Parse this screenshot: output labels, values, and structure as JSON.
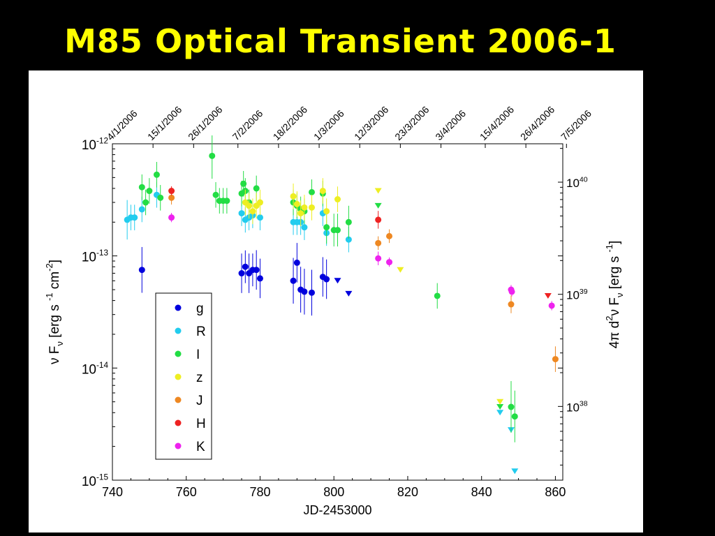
{
  "slide_title": "M85 Optical Transient 2006-1",
  "chart_data": {
    "type": "scatter",
    "xlabel": "JD-2453000",
    "ylabel_main": "ν F",
    "ylabel_sub": "ν",
    "ylabel_units": "[erg s",
    "ylabel_units_exp1": "-1",
    "ylabel_units_mid": "cm",
    "ylabel_units_exp2": "-2",
    "ylabel_units_end": "]",
    "y2label_pre": "4π d",
    "y2label_sq": "2",
    "y2label_mid": "ν F",
    "y2label_sub": "ν",
    "y2label_units": "[erg s",
    "y2label_units_exp": "-1",
    "y2label_units_end": "]",
    "xlim": [
      740,
      862
    ],
    "ylim": [
      1e-15,
      1e-12
    ],
    "yscale": "log",
    "y2scale": "log",
    "y2lim_approx": [
      2.2e+37,
      2.2e+40
    ],
    "x_ticks": [
      740,
      760,
      780,
      800,
      820,
      840,
      860
    ],
    "y_ticks": [
      {
        "base": "10",
        "exp": "-15",
        "value": 1e-15
      },
      {
        "base": "10",
        "exp": "-14",
        "value": 1e-14
      },
      {
        "base": "10",
        "exp": "-13",
        "value": 1e-13
      },
      {
        "base": "10",
        "exp": "-12",
        "value": 1e-12
      }
    ],
    "y2_ticks": [
      {
        "base": "10",
        "exp": "38",
        "value": 1e+38
      },
      {
        "base": "10",
        "exp": "39",
        "value": 1e+39
      },
      {
        "base": "10",
        "exp": "40",
        "value": 1e+40
      }
    ],
    "top_ticks": [
      {
        "jd": 740,
        "label": "4/1/2006"
      },
      {
        "jd": 751,
        "label": "15/1/2006"
      },
      {
        "jd": 762,
        "label": "26/1/2006"
      },
      {
        "jd": 774,
        "label": "7/2/2006"
      },
      {
        "jd": 785,
        "label": "18/2/2006"
      },
      {
        "jd": 796,
        "label": "1/3/2006"
      },
      {
        "jd": 807,
        "label": "12/3/2006"
      },
      {
        "jd": 818,
        "label": "23/3/2006"
      },
      {
        "jd": 829,
        "label": "3/4/2006"
      },
      {
        "jd": 841,
        "label": "15/4/2006"
      },
      {
        "jd": 852,
        "label": "26/4/2006"
      },
      {
        "jd": 863,
        "label": "7/5/2006"
      }
    ],
    "grid": false,
    "legend_position": "lower-left",
    "series": [
      {
        "name": "g",
        "color": "#0000dd",
        "points": [
          [
            748,
            7.5e-14,
            1.6
          ],
          [
            775,
            7e-14,
            1.5
          ],
          [
            776,
            8e-14,
            1.4
          ],
          [
            777,
            7e-14,
            1.5
          ],
          [
            778,
            7.5e-14,
            1.4
          ],
          [
            779,
            7.5e-14,
            1.5
          ],
          [
            780,
            6.3e-14,
            1.5
          ],
          [
            789,
            6e-14,
            1.6
          ],
          [
            790,
            8.7e-14,
            1.5
          ],
          [
            791,
            5e-14,
            1.6
          ],
          [
            792,
            4.8e-14,
            1.6
          ],
          [
            794,
            4.7e-14,
            1.6
          ],
          [
            797,
            6.5e-14,
            1.5
          ],
          [
            798,
            6.2e-14,
            1.5
          ]
        ],
        "upper_limits": [
          [
            801,
            6e-14
          ],
          [
            804,
            4.6e-14
          ]
        ]
      },
      {
        "name": "R",
        "color": "#22ccee",
        "points": [
          [
            744,
            2.1e-13,
            1.5
          ],
          [
            745,
            2.2e-13,
            1.3
          ],
          [
            746,
            2.2e-13,
            1.3
          ],
          [
            748,
            2.6e-13,
            1.3
          ],
          [
            752,
            3.5e-13,
            1.3
          ],
          [
            775,
            2.4e-13,
            1.3
          ],
          [
            776,
            2.1e-13,
            1.3
          ],
          [
            777,
            2.2e-13,
            1.3
          ],
          [
            778,
            2.3e-13,
            1.3
          ],
          [
            780,
            2.2e-13,
            1.3
          ],
          [
            789,
            2e-13,
            1.3
          ],
          [
            790,
            2e-13,
            1.3
          ],
          [
            791,
            2e-13,
            1.3
          ],
          [
            792,
            1.8e-13,
            1.3
          ],
          [
            797,
            2.4e-13,
            1.3
          ],
          [
            798,
            1.6e-13,
            1.3
          ],
          [
            804,
            1.4e-13,
            1.3
          ]
        ],
        "upper_limits": [
          [
            845,
            4e-15
          ],
          [
            848,
            2.8e-15
          ],
          [
            849,
            1.2e-15
          ]
        ]
      },
      {
        "name": "I",
        "color": "#22dd44",
        "points": [
          [
            748,
            4.1e-13,
            1.3
          ],
          [
            749,
            3e-13,
            1.3
          ],
          [
            750,
            3.8e-13,
            1.3
          ],
          [
            752,
            5.3e-13,
            1.3
          ],
          [
            753,
            3.3e-13,
            1.3
          ],
          [
            767,
            7.8e-13,
            1.6
          ],
          [
            768,
            3.5e-13,
            1.3
          ],
          [
            769,
            3.1e-13,
            1.3
          ],
          [
            770,
            3.1e-13,
            1.3
          ],
          [
            771,
            3.1e-13,
            1.3
          ],
          [
            775,
            3.6e-13,
            1.3
          ],
          [
            775.5,
            4.4e-13,
            1.3
          ],
          [
            776,
            3.8e-13,
            1.3
          ],
          [
            777,
            3e-13,
            1.3
          ],
          [
            779,
            4e-13,
            1.3
          ],
          [
            789,
            3e-13,
            1.3
          ],
          [
            790,
            2.8e-13,
            1.3
          ],
          [
            791,
            2.6e-13,
            1.3
          ],
          [
            792,
            2.5e-13,
            1.3
          ],
          [
            794,
            3.7e-13,
            1.3
          ],
          [
            797,
            3.6e-13,
            1.3
          ],
          [
            798,
            1.8e-13,
            1.4
          ],
          [
            800,
            1.7e-13,
            1.4
          ],
          [
            801,
            1.7e-13,
            1.4
          ],
          [
            804,
            2e-13,
            1.4
          ],
          [
            828,
            4.4e-14,
            1.3
          ],
          [
            848,
            4.5e-15,
            1.7
          ],
          [
            849,
            3.7e-15,
            1.7
          ]
        ],
        "upper_limits": [
          [
            812,
            2.8e-13
          ],
          [
            845,
            4.5e-15
          ]
        ]
      },
      {
        "name": "z",
        "color": "#eeee22",
        "points": [
          [
            776,
            3e-13,
            1.3
          ],
          [
            777,
            2.8e-13,
            1.3
          ],
          [
            778,
            2.5e-13,
            1.3
          ],
          [
            779,
            2.8e-13,
            1.3
          ],
          [
            780,
            3e-13,
            1.3
          ],
          [
            789,
            3.4e-13,
            1.3
          ],
          [
            790,
            2.9e-13,
            1.3
          ],
          [
            791,
            2.4e-13,
            1.3
          ],
          [
            792,
            2.7e-13,
            1.3
          ],
          [
            794,
            2.7e-13,
            1.3
          ],
          [
            797,
            3.8e-13,
            1.3
          ],
          [
            798,
            2.5e-13,
            1.3
          ],
          [
            801,
            3.2e-13,
            1.3
          ]
        ],
        "upper_limits": [
          [
            812,
            3.8e-13
          ],
          [
            818,
            7.5e-14
          ],
          [
            845,
            5e-15
          ]
        ]
      },
      {
        "name": "J",
        "color": "#ee8822",
        "points": [
          [
            756,
            3.3e-13,
            1.15
          ],
          [
            812,
            1.3e-13,
            1.15
          ],
          [
            815,
            1.5e-13,
            1.15
          ],
          [
            848,
            3.7e-14,
            1.2
          ],
          [
            860,
            1.2e-14,
            1.3
          ]
        ],
        "upper_limits": []
      },
      {
        "name": "H",
        "color": "#ee2222",
        "points": [
          [
            756,
            3.8e-13,
            1.1
          ],
          [
            812,
            2.1e-13,
            1.2
          ]
        ],
        "upper_limits": [
          [
            858,
            4.4e-14
          ]
        ]
      },
      {
        "name": "K",
        "color": "#ee22ee",
        "points": [
          [
            756,
            2.2e-13,
            1.1
          ],
          [
            812,
            9.5e-14,
            1.15
          ],
          [
            815,
            8.8e-14,
            1.1
          ],
          [
            848,
            5e-14,
            1.1
          ],
          [
            848.2,
            4.8e-14,
            1.1
          ],
          [
            859,
            3.6e-14,
            1.1
          ]
        ],
        "upper_limits": []
      }
    ]
  }
}
